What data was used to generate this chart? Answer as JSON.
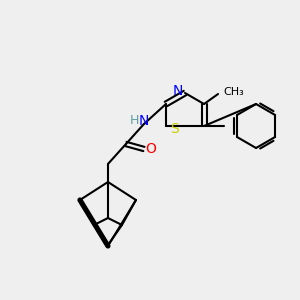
{
  "bg_color": "#efefef",
  "bond_color": "#000000",
  "bond_width": 1.5,
  "atom_colors": {
    "N": "#0000ff",
    "O": "#ff0000",
    "S": "#cccc00",
    "C": "#000000",
    "H": "#5f9ea0"
  },
  "font_size": 9,
  "font_size_label": 8
}
